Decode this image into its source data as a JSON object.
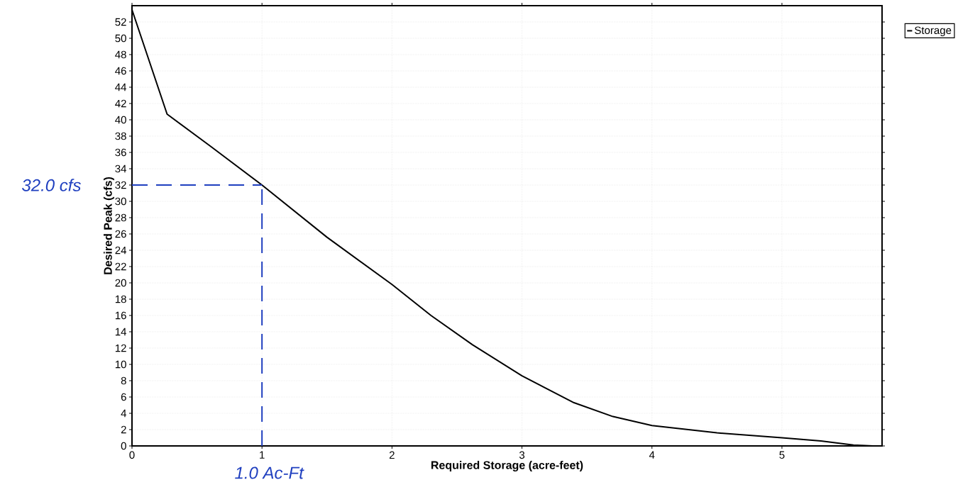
{
  "chart_data": {
    "type": "line",
    "xlabel": "Required Storage  (acre-feet)",
    "ylabel": "Desired Peak (cfs)",
    "xlim": [
      0,
      5.77
    ],
    "ylim": [
      0,
      54
    ],
    "xticks": [
      0,
      1,
      2,
      3,
      4,
      5
    ],
    "yticks": [
      0,
      2,
      4,
      6,
      8,
      10,
      12,
      14,
      16,
      18,
      20,
      22,
      24,
      26,
      28,
      30,
      32,
      34,
      36,
      38,
      40,
      42,
      44,
      46,
      48,
      50,
      52
    ],
    "grid": true,
    "legend": "top right",
    "marker": "none",
    "line_style": "solid",
    "series": [
      {
        "name": "Storage",
        "color": "#000000",
        "x": [
          0,
          0.27,
          0.6,
          1,
          1.5,
          2,
          2.3,
          2.62,
          3,
          3.4,
          3.7,
          4,
          4.5,
          5,
          5.3,
          5.55,
          5.7
        ],
        "values": [
          53.5,
          40.7,
          36.8,
          32,
          25.6,
          19.8,
          16.0,
          12.4,
          8.6,
          5.3,
          3.6,
          2.5,
          1.6,
          1.0,
          0.6,
          0.1,
          0
        ]
      }
    ],
    "ref_lines": [
      {
        "axis": "y",
        "value": 32,
        "label": "32.0 cfs",
        "color": "#1f3fbf",
        "line_style": "dashed"
      },
      {
        "axis": "x",
        "value": 1,
        "label": "1.0 Ac-Ft",
        "color": "#1f3fbf",
        "line_style": "dashed"
      }
    ]
  }
}
